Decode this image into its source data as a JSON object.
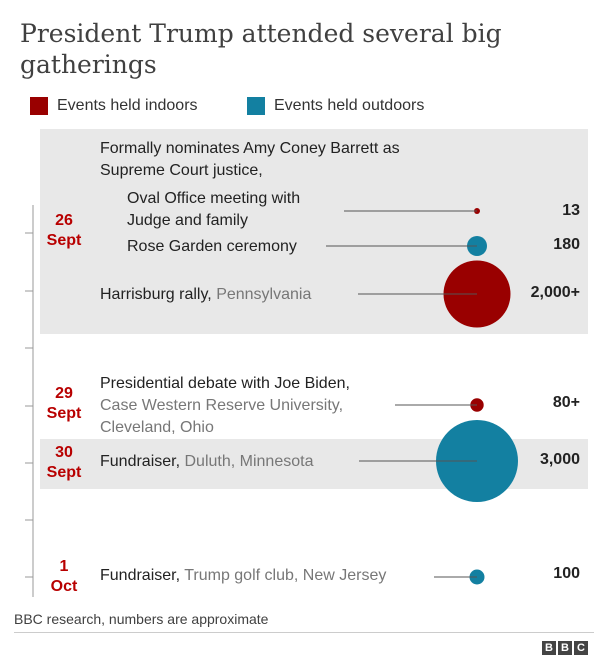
{
  "title": "President Trump attended several big gatherings",
  "legend": [
    {
      "label": "Events held indoors",
      "color": "#990000"
    },
    {
      "label": "Events held outdoors",
      "color": "#1380a1"
    }
  ],
  "colors": {
    "indoor": "#990000",
    "outdoor": "#1380a1",
    "band": "#e8e8e8",
    "date": "#b80000"
  },
  "dates": [
    {
      "day": "26",
      "month": "Sept"
    },
    {
      "day": "29",
      "month": "Sept"
    },
    {
      "day": "30",
      "month": "Sept"
    },
    {
      "day": "1",
      "month": "Oct"
    }
  ],
  "group_note": "Formally nominates Amy Coney Barrett as Supreme Court justice,",
  "chart_data": {
    "type": "bubble-timeline",
    "title": "President Trump attended several big gatherings",
    "size_metric": "Attendance (approximate)",
    "events": [
      {
        "date": "26 Sept",
        "event": "Oval Office meeting with Judge and family",
        "location": "",
        "setting": "indoors",
        "attendance": 13,
        "value_label": "13"
      },
      {
        "date": "26 Sept",
        "event": "Rose Garden ceremony",
        "location": "",
        "setting": "outdoors",
        "attendance": 180,
        "value_label": "180"
      },
      {
        "date": "26 Sept",
        "event": "Harrisburg rally,",
        "location": "Pennsylvania",
        "setting": "indoors",
        "attendance": 2000,
        "value_label": "2,000+"
      },
      {
        "date": "29 Sept",
        "event": "Presidential debate with Joe Biden,",
        "location": "Case Western Reserve University, Cleveland, Ohio",
        "setting": "indoors",
        "attendance": 80,
        "value_label": "80+"
      },
      {
        "date": "30 Sept",
        "event": "Fundraiser,",
        "location": "Duluth, Minnesota",
        "setting": "outdoors",
        "attendance": 3000,
        "value_label": "3,000"
      },
      {
        "date": "1 Oct",
        "event": "Fundraiser,",
        "location": "Trump golf club, New Jersey",
        "setting": "outdoors",
        "attendance": 100,
        "value_label": "100"
      }
    ]
  },
  "footer": "BBC research, numbers are approximate",
  "brand": [
    "B",
    "B",
    "C"
  ]
}
